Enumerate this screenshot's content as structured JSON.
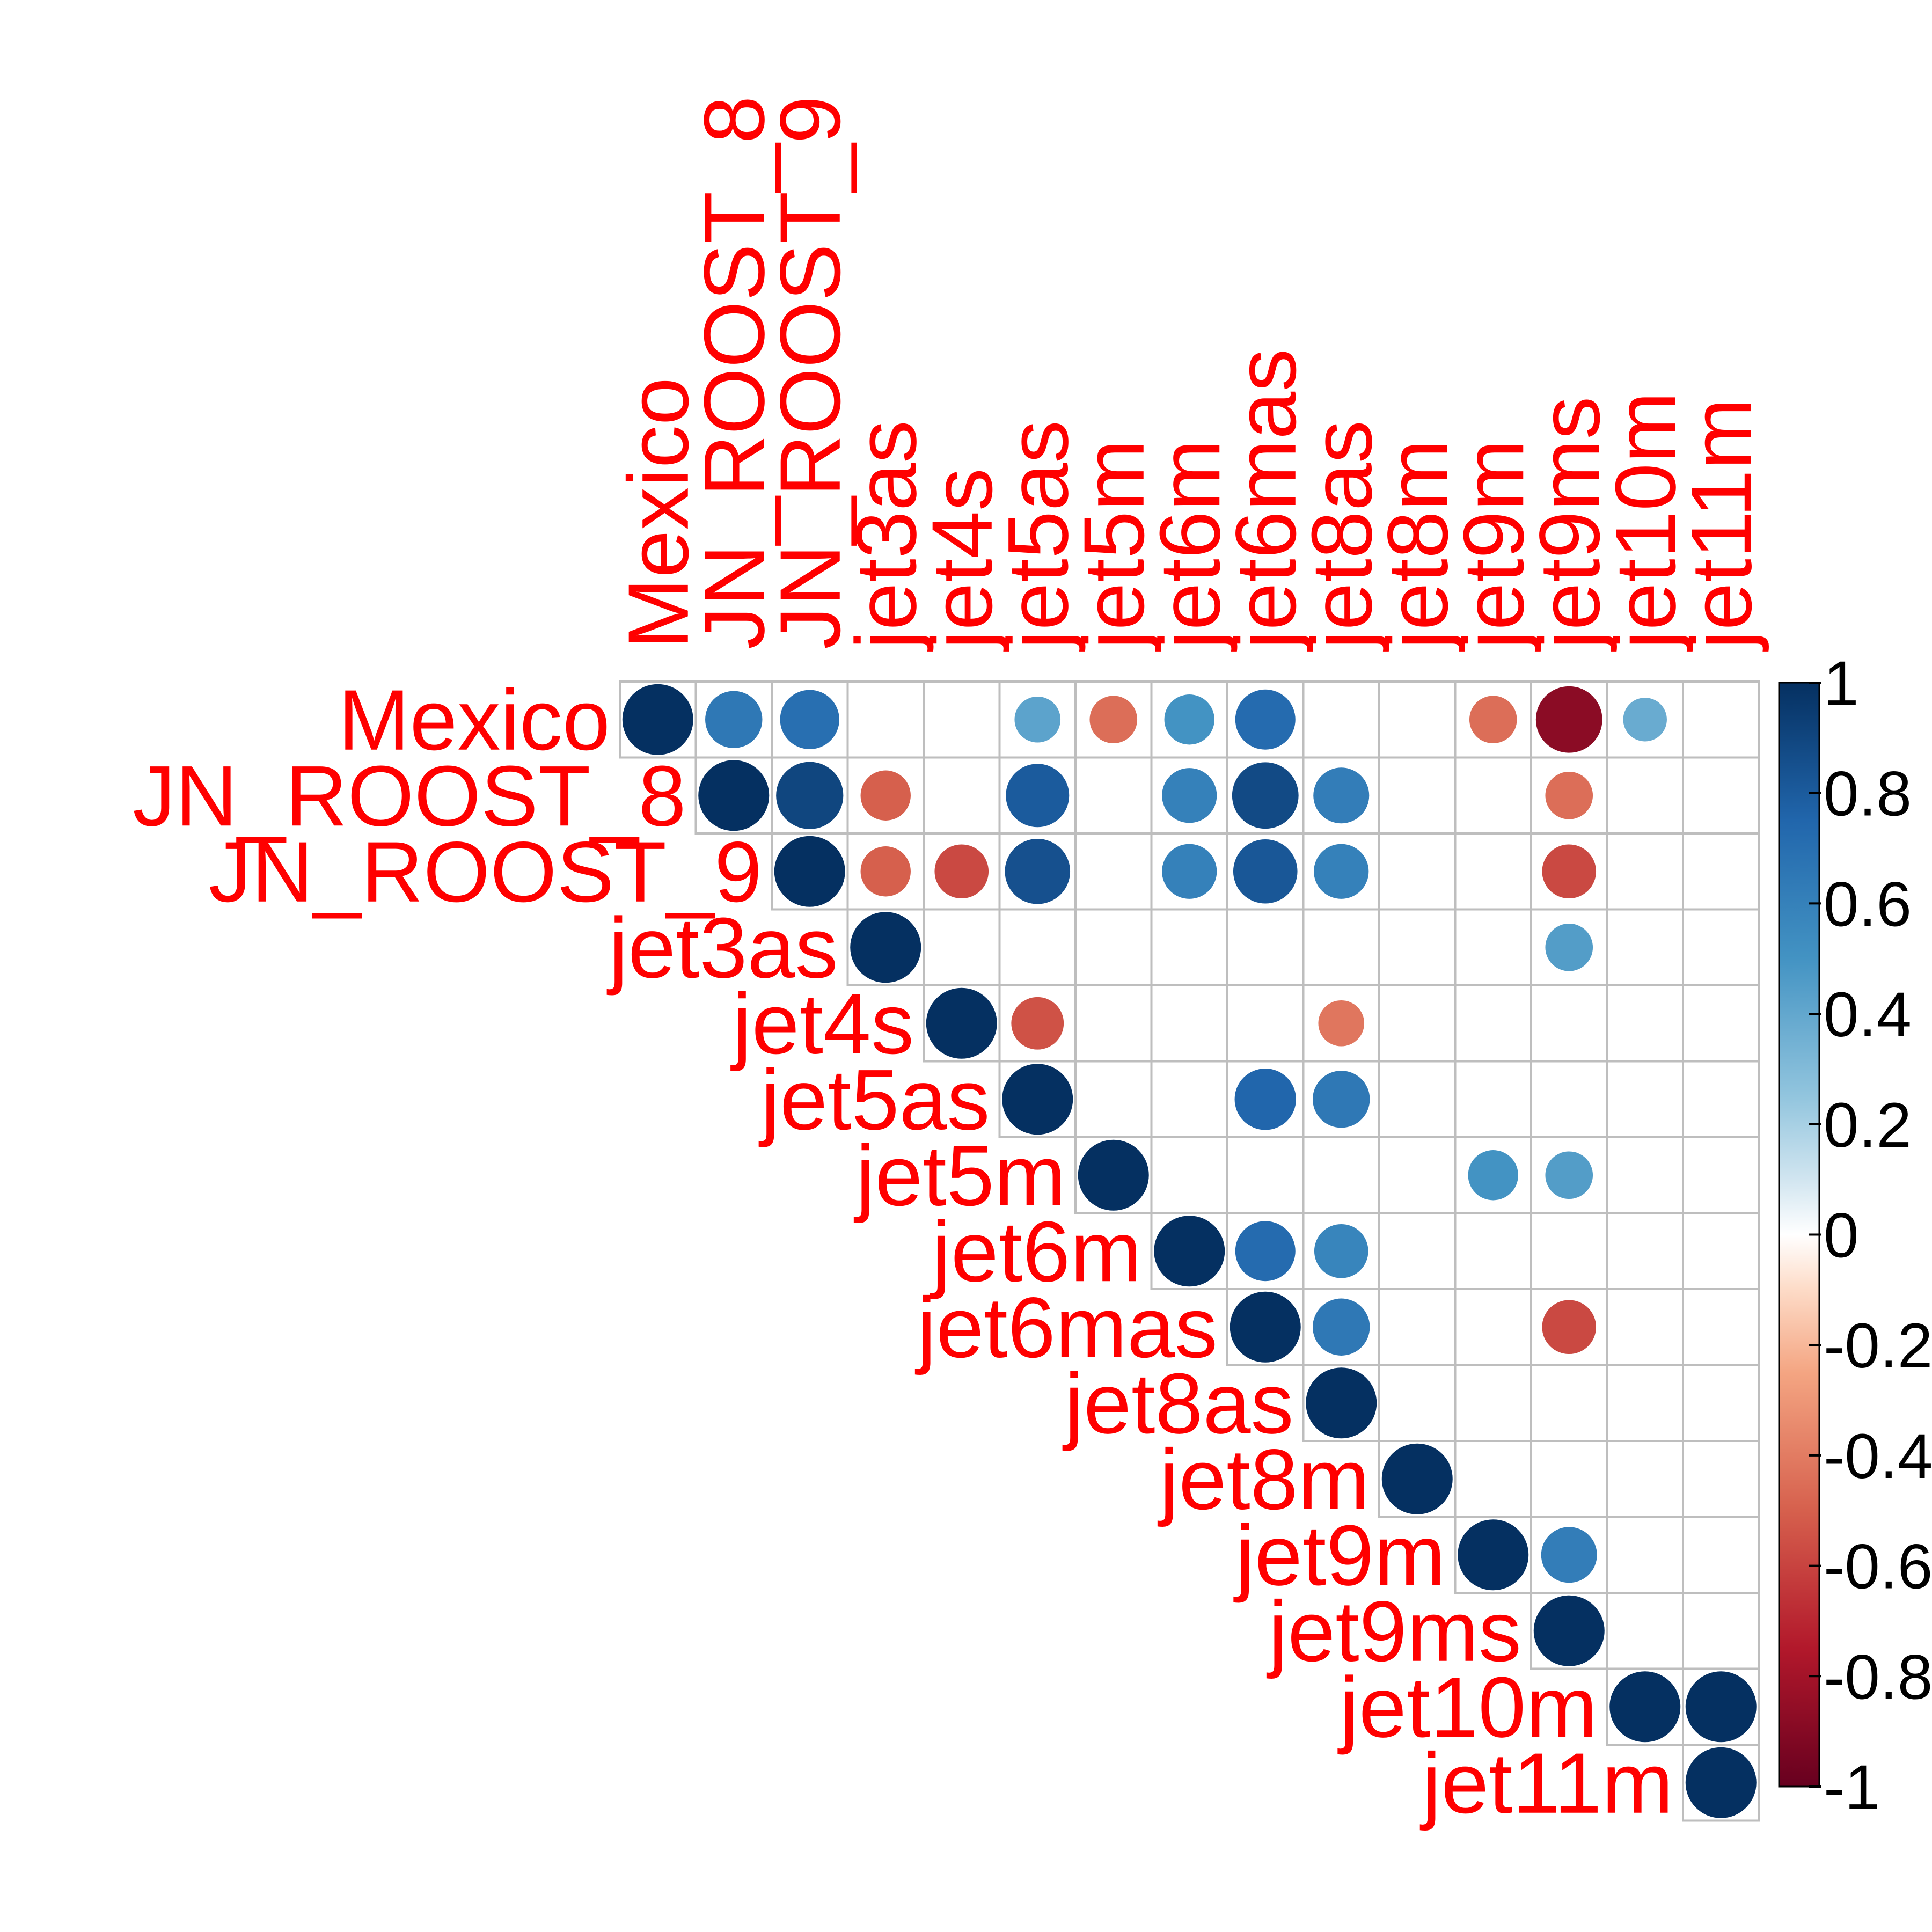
{
  "chart_data": {
    "type": "heatmap",
    "layout": "upper-triangle correlation plot with circles",
    "variables": [
      "Mexico",
      "JN_ROOST_8",
      "JN_ROOST_9",
      "jet3as",
      "jet4s",
      "jet5as",
      "jet5m",
      "jet6m",
      "jet6mas",
      "jet8as",
      "jet8m",
      "jet9m",
      "jet9ms",
      "jet10m",
      "jet11m"
    ],
    "cells": [
      {
        "row": "Mexico",
        "col": "Mexico",
        "value": 1
      },
      {
        "row": "Mexico",
        "col": "JN_ROOST_8",
        "value": 0.65
      },
      {
        "row": "Mexico",
        "col": "JN_ROOST_9",
        "value": 0.7
      },
      {
        "row": "Mexico",
        "col": "jet5as",
        "value": 0.42
      },
      {
        "row": "Mexico",
        "col": "jet5m",
        "value": -0.45
      },
      {
        "row": "Mexico",
        "col": "jet6m",
        "value": 0.5
      },
      {
        "row": "Mexico",
        "col": "jet6mas",
        "value": 0.72
      },
      {
        "row": "Mexico",
        "col": "jet9m",
        "value": -0.45
      },
      {
        "row": "Mexico",
        "col": "jet9ms",
        "value": -0.88
      },
      {
        "row": "Mexico",
        "col": "jet10m",
        "value": 0.38
      },
      {
        "row": "JN_ROOST_8",
        "col": "JN_ROOST_8",
        "value": 1
      },
      {
        "row": "JN_ROOST_8",
        "col": "JN_ROOST_9",
        "value": 0.9
      },
      {
        "row": "JN_ROOST_8",
        "col": "jet3as",
        "value": -0.5
      },
      {
        "row": "JN_ROOST_8",
        "col": "jet5as",
        "value": 0.8
      },
      {
        "row": "JN_ROOST_8",
        "col": "jet6m",
        "value": 0.6
      },
      {
        "row": "JN_ROOST_8",
        "col": "jet6mas",
        "value": 0.88
      },
      {
        "row": "JN_ROOST_8",
        "col": "jet8as",
        "value": 0.62
      },
      {
        "row": "JN_ROOST_8",
        "col": "jet9ms",
        "value": -0.45
      },
      {
        "row": "JN_ROOST_9",
        "col": "JN_ROOST_9",
        "value": 1
      },
      {
        "row": "JN_ROOST_9",
        "col": "jet3as",
        "value": -0.5
      },
      {
        "row": "JN_ROOST_9",
        "col": "jet4s",
        "value": -0.58
      },
      {
        "row": "JN_ROOST_9",
        "col": "jet5as",
        "value": 0.85
      },
      {
        "row": "JN_ROOST_9",
        "col": "jet6m",
        "value": 0.6
      },
      {
        "row": "JN_ROOST_9",
        "col": "jet6mas",
        "value": 0.82
      },
      {
        "row": "JN_ROOST_9",
        "col": "jet8as",
        "value": 0.6
      },
      {
        "row": "JN_ROOST_9",
        "col": "jet9ms",
        "value": -0.58
      },
      {
        "row": "jet3as",
        "col": "jet3as",
        "value": 1
      },
      {
        "row": "jet3as",
        "col": "jet9ms",
        "value": 0.45
      },
      {
        "row": "jet4s",
        "col": "jet4s",
        "value": 1
      },
      {
        "row": "jet4s",
        "col": "jet5as",
        "value": -0.55
      },
      {
        "row": "jet4s",
        "col": "jet8as",
        "value": -0.42
      },
      {
        "row": "jet5as",
        "col": "jet5as",
        "value": 1
      },
      {
        "row": "jet5as",
        "col": "jet6mas",
        "value": 0.75
      },
      {
        "row": "jet5as",
        "col": "jet8as",
        "value": 0.65
      },
      {
        "row": "jet5m",
        "col": "jet5m",
        "value": 1
      },
      {
        "row": "jet5m",
        "col": "jet9m",
        "value": 0.5
      },
      {
        "row": "jet5m",
        "col": "jet9ms",
        "value": 0.45
      },
      {
        "row": "jet6m",
        "col": "jet6m",
        "value": 1
      },
      {
        "row": "jet6m",
        "col": "jet6mas",
        "value": 0.72
      },
      {
        "row": "jet6m",
        "col": "jet8as",
        "value": 0.58
      },
      {
        "row": "jet6mas",
        "col": "jet6mas",
        "value": 1
      },
      {
        "row": "jet6mas",
        "col": "jet8as",
        "value": 0.65
      },
      {
        "row": "jet6mas",
        "col": "jet9ms",
        "value": -0.58
      },
      {
        "row": "jet8as",
        "col": "jet8as",
        "value": 1
      },
      {
        "row": "jet8m",
        "col": "jet8m",
        "value": 1
      },
      {
        "row": "jet9m",
        "col": "jet9m",
        "value": 1
      },
      {
        "row": "jet9m",
        "col": "jet9ms",
        "value": 0.62
      },
      {
        "row": "jet9ms",
        "col": "jet9ms",
        "value": 1
      },
      {
        "row": "jet10m",
        "col": "jet10m",
        "value": 1
      },
      {
        "row": "jet10m",
        "col": "jet11m",
        "value": 1
      },
      {
        "row": "jet11m",
        "col": "jet11m",
        "value": 1
      }
    ],
    "color_scale": {
      "range": [
        -1,
        1
      ],
      "ticks": [
        "1",
        "0.8",
        "0.6",
        "0.4",
        "0.2",
        "0",
        "-0.2",
        "-0.4",
        "-0.6",
        "-0.8",
        "-1"
      ],
      "tick_values": [
        1,
        0.8,
        0.6,
        0.4,
        0.2,
        0,
        -0.2,
        -0.4,
        -0.6,
        -0.8,
        -1
      ],
      "stops": [
        {
          "value": -1,
          "color": "#67001f"
        },
        {
          "value": -0.75,
          "color": "#b2182b"
        },
        {
          "value": -0.5,
          "color": "#d6604d"
        },
        {
          "value": -0.25,
          "color": "#f4a582"
        },
        {
          "value": -0.1,
          "color": "#fddbc7"
        },
        {
          "value": 0,
          "color": "#ffffff"
        },
        {
          "value": 0.1,
          "color": "#d1e5f0"
        },
        {
          "value": 0.25,
          "color": "#92c5de"
        },
        {
          "value": 0.5,
          "color": "#4393c3"
        },
        {
          "value": 0.75,
          "color": "#2166ac"
        },
        {
          "value": 1,
          "color": "#053061"
        }
      ]
    },
    "label_color": "#ff0000",
    "grid_color": "#bebebe",
    "legend_position": "right"
  }
}
